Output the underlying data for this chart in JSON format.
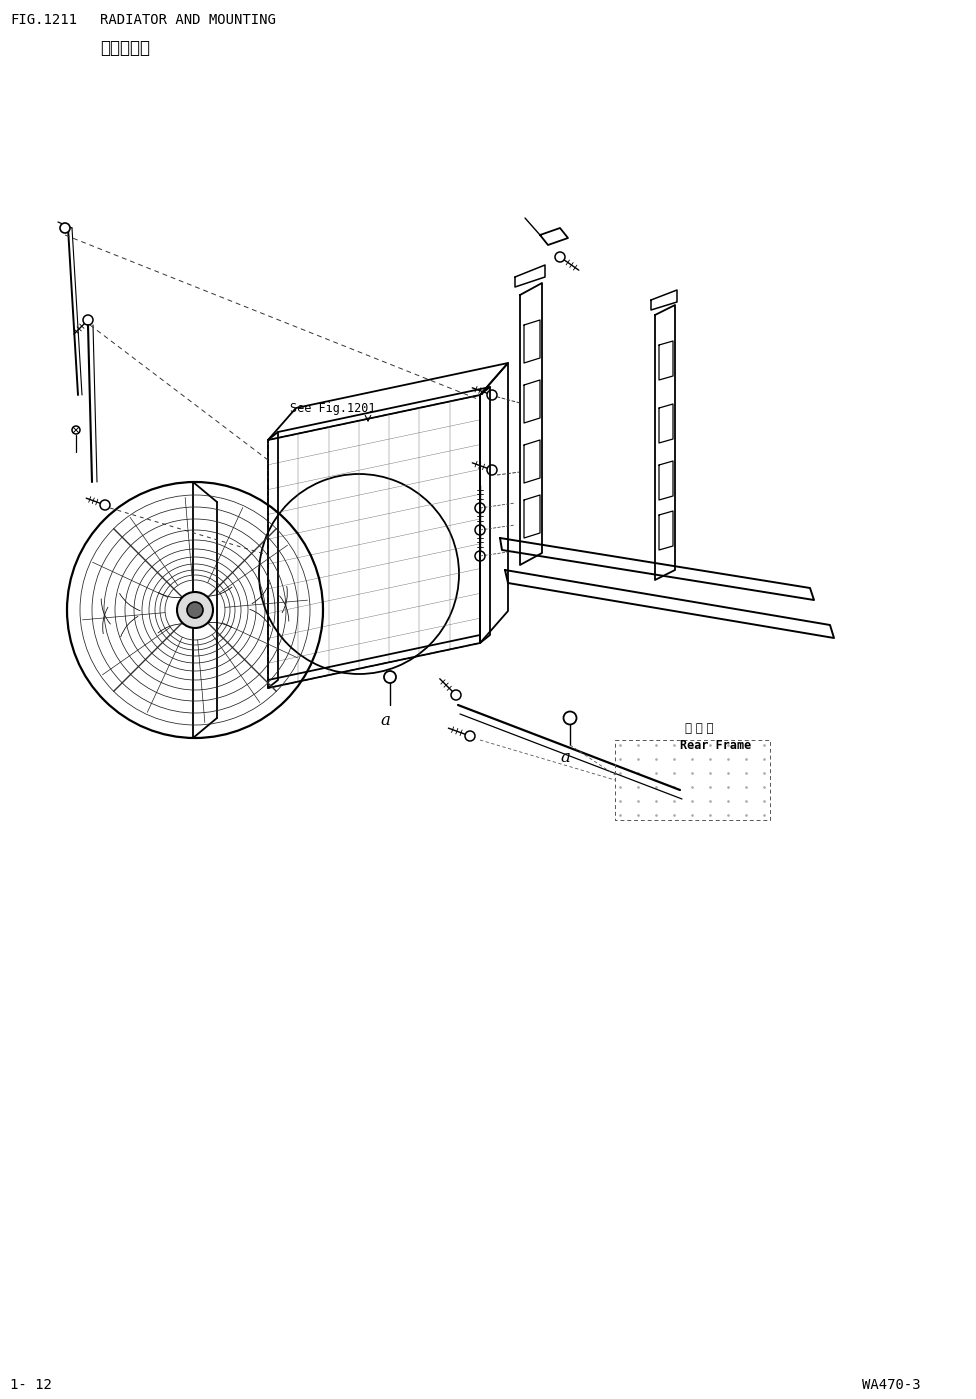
{
  "bg_color": "#ffffff",
  "title_fig": "FIG.1211",
  "title_text": "RADIATOR AND MOUNTING",
  "subtitle_cn": "散热器安装",
  "bottom_left": "1- 12",
  "bottom_right": "WA470-3",
  "see_fig_label": "See Fig.1201",
  "rear_frame_cn": "后 车 架",
  "rear_frame_en": "Rear Frame",
  "lc": "#000000"
}
